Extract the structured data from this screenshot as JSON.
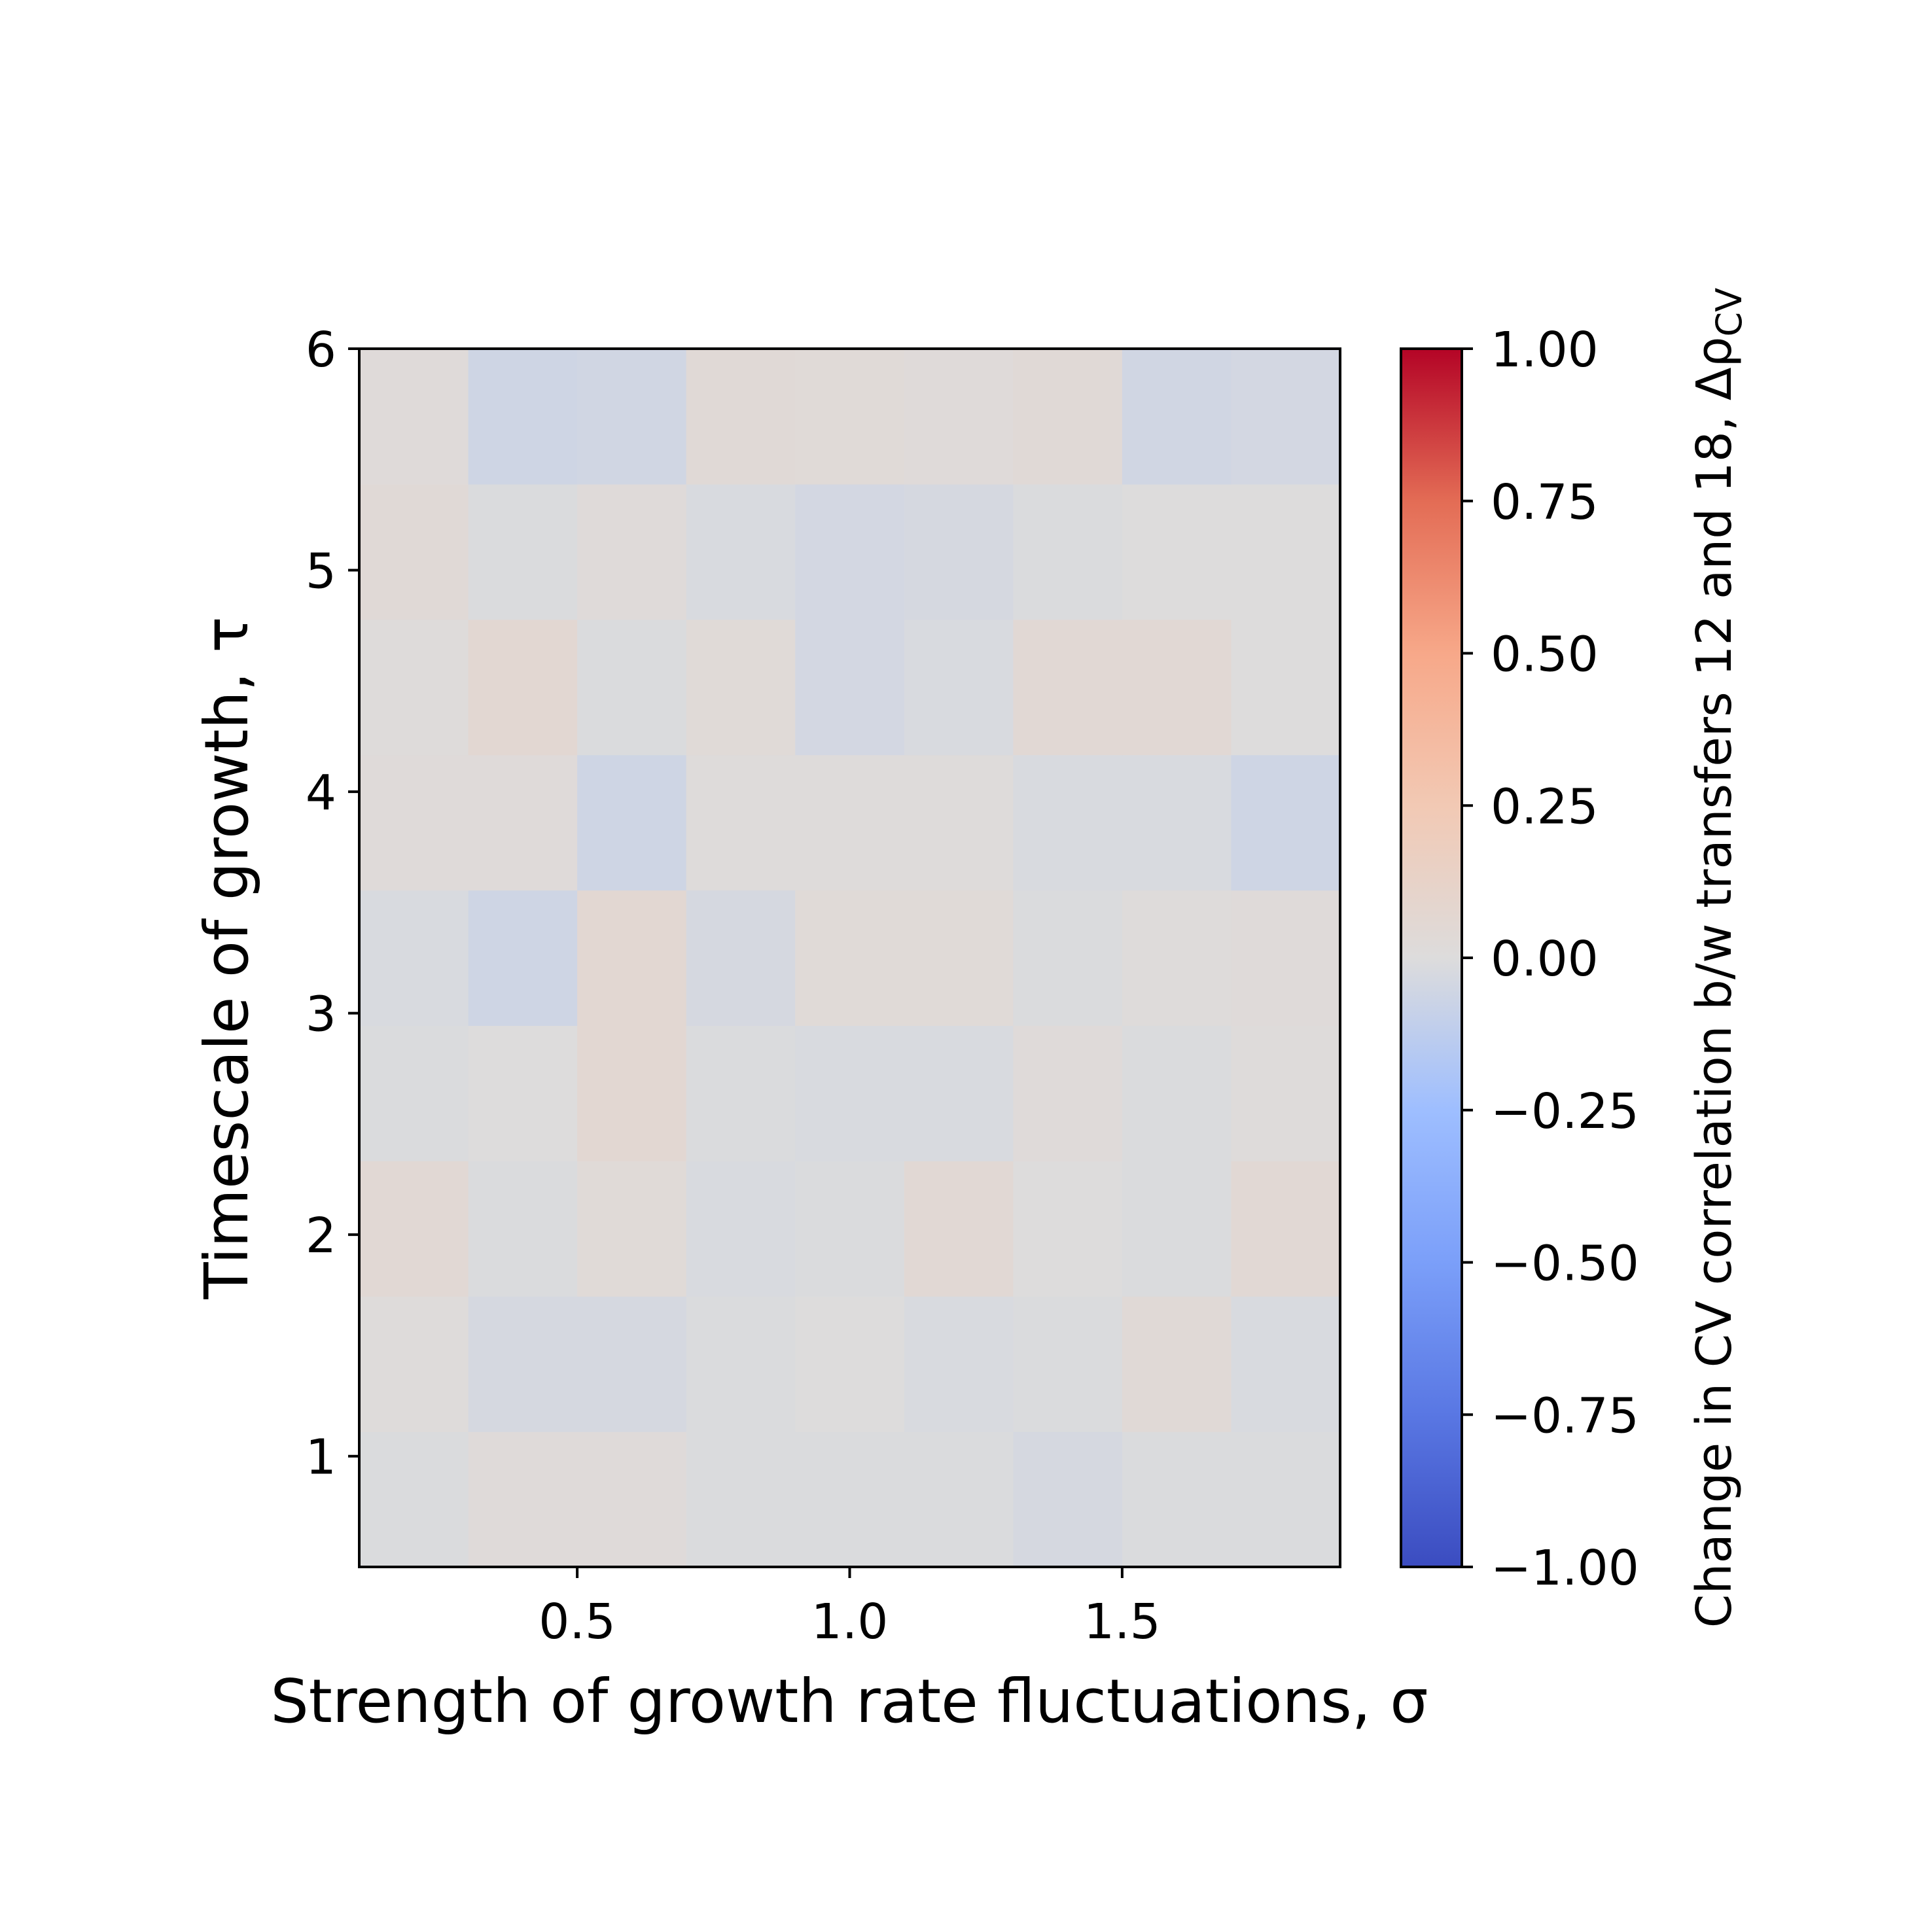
{
  "chart_data": {
    "type": "heatmap",
    "xlabel": "Strength of growth rate fluctuations, σ",
    "ylabel": "Timescale of growth, τ",
    "xlim": [
      0.1,
      1.9
    ],
    "ylim": [
      0.5,
      6.0
    ],
    "x_ticks": [
      0.5,
      1.0,
      1.5
    ],
    "x_tick_labels": [
      "0.5",
      "1.0",
      "1.5"
    ],
    "y_ticks": [
      1,
      2,
      3,
      4,
      5,
      6
    ],
    "y_tick_labels": [
      "1",
      "2",
      "3",
      "4",
      "5",
      "6"
    ],
    "x_centers": [
      0.2,
      0.4,
      0.6,
      0.8,
      1.0,
      1.2,
      1.4,
      1.6,
      1.8
    ],
    "y_centers": [
      0.805,
      1.416,
      2.027,
      2.638,
      3.249,
      3.861,
      4.472,
      5.083,
      5.694
    ],
    "values": [
      [
        -0.01,
        0.02,
        0.02,
        -0.01,
        -0.01,
        -0.01,
        -0.03,
        -0.01,
        -0.01
      ],
      [
        0.01,
        -0.03,
        -0.03,
        -0.01,
        0.0,
        -0.02,
        -0.01,
        0.04,
        -0.02
      ],
      [
        0.05,
        -0.01,
        0.03,
        -0.02,
        -0.01,
        0.05,
        0.0,
        -0.01,
        0.05
      ],
      [
        -0.01,
        0.0,
        0.06,
        -0.01,
        -0.02,
        -0.02,
        0.02,
        -0.01,
        0.01
      ],
      [
        -0.02,
        -0.06,
        0.06,
        -0.03,
        0.03,
        0.03,
        -0.01,
        0.01,
        0.02
      ],
      [
        0.02,
        0.02,
        -0.06,
        0.01,
        0.01,
        0.01,
        -0.02,
        -0.02,
        -0.06
      ],
      [
        0.01,
        0.06,
        -0.01,
        0.03,
        -0.04,
        -0.02,
        0.05,
        0.05,
        0.0
      ],
      [
        0.04,
        -0.01,
        0.02,
        -0.02,
        -0.04,
        -0.03,
        -0.01,
        0.0,
        0.0
      ],
      [
        0.02,
        -0.06,
        -0.05,
        0.04,
        0.03,
        0.02,
        0.04,
        -0.05,
        -0.04
      ]
    ],
    "colormap": "coolwarm",
    "colorbar": {
      "label": "Change in CV correlation b/w transfers 12 and 18, Δρ",
      "label_subscript": "CV",
      "vmin": -1.0,
      "vmax": 1.0,
      "ticks": [
        -1.0,
        -0.75,
        -0.5,
        -0.25,
        0.0,
        0.25,
        0.5,
        0.75,
        1.0
      ],
      "tick_labels": [
        "−1.00",
        "−0.75",
        "−0.50",
        "−0.25",
        "0.00",
        "0.25",
        "0.50",
        "0.75",
        "1.00"
      ]
    }
  }
}
